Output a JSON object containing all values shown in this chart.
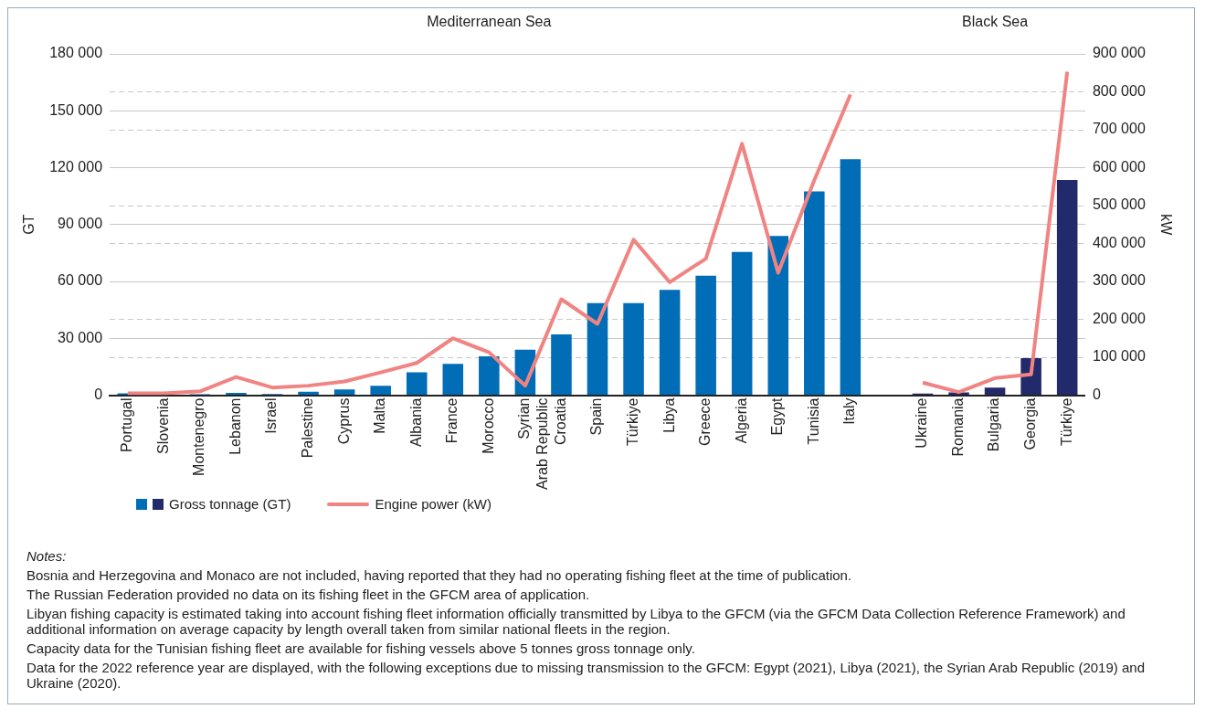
{
  "chart_data": {
    "type": "bar",
    "categories": [
      "Portugal",
      "Slovenia",
      "Montenegro",
      "Lebanon",
      "Israel",
      "Palestine",
      "Cyprus",
      "Malta",
      "Albania",
      "France",
      "Morocco",
      "Syrian Arab Republic",
      "Croatia",
      "Spain",
      "Türkiye",
      "Libya",
      "Greece",
      "Algeria",
      "Egypt",
      "Tunisia",
      "Italy",
      null,
      "Ukraine",
      "Romania",
      "Bulgaria",
      "Georgia",
      "Türkiye"
    ],
    "series": [
      {
        "name": "Gross tonnage (GT)",
        "color": "#006db6",
        "colors": [
          "#006db6",
          "#006db6",
          "#006db6",
          "#006db6",
          "#006db6",
          "#006db6",
          "#006db6",
          "#006db6",
          "#006db6",
          "#006db6",
          "#006db6",
          "#006db6",
          "#006db6",
          "#006db6",
          "#006db6",
          "#006db6",
          "#006db6",
          "#006db6",
          "#006db6",
          "#006db6",
          "#006db6",
          null,
          "#222a6b",
          "#222a6b",
          "#222a6b",
          "#222a6b",
          "#222a6b"
        ],
        "values": [
          1000,
          300,
          500,
          1200,
          600,
          1800,
          3000,
          5000,
          12000,
          16500,
          20500,
          24000,
          32000,
          48500,
          48500,
          55500,
          63000,
          75500,
          84000,
          107500,
          124500,
          null,
          800,
          1500,
          4000,
          19500,
          113500
        ]
      },
      {
        "name": "Engine power (kW)",
        "type": "line",
        "axis": "y2",
        "color": "#f08482",
        "values": [
          5000,
          5000,
          10000,
          48000,
          20000,
          25000,
          36000,
          60000,
          85000,
          150000,
          113000,
          25000,
          253000,
          188000,
          410000,
          298000,
          360000,
          663000,
          323000,
          567000,
          793000,
          null,
          33000,
          8000,
          45000,
          55000,
          853000
        ]
      }
    ],
    "ylabel": "GT",
    "y2label": "kW",
    "ylim": [
      0,
      180000
    ],
    "yticks": [
      {
        "value": 0,
        "label": "0"
      },
      {
        "value": 30000,
        "label": "30 000"
      },
      {
        "value": 60000,
        "label": "60 000"
      },
      {
        "value": 90000,
        "label": "90 000"
      },
      {
        "value": 120000,
        "label": "120 000"
      },
      {
        "value": 150000,
        "label": "150 000"
      },
      {
        "value": 180000,
        "label": "180 000"
      }
    ],
    "y2lim": [
      0,
      900000
    ],
    "y2ticks": [
      {
        "value": 0,
        "label": "0"
      },
      {
        "value": 100000,
        "label": "100 000"
      },
      {
        "value": 200000,
        "label": "200 000"
      },
      {
        "value": 300000,
        "label": "300 000"
      },
      {
        "value": 400000,
        "label": "400 000"
      },
      {
        "value": 500000,
        "label": "500 000"
      },
      {
        "value": 600000,
        "label": "600 000"
      },
      {
        "value": 700000,
        "label": "700 000"
      },
      {
        "value": 800000,
        "label": "800 000"
      },
      {
        "value": 900000,
        "label": "900 000"
      }
    ],
    "grid": "y",
    "legend": "bottom left",
    "marker": "none",
    "annotations": [
      "Mediterranean Sea",
      "Black Sea",
      "Notes:",
      "Bosnia and Herzegovina and Monaco are not included, having reported that they had no operating fishing fleet at the time of publication.",
      "The Russian Federation provided no data on its fishing fleet in the GFCM area of application.",
      "Libyan fishing capacity is estimated taking into account fishing fleet information officially transmitted by Libya to the GFCM (via the GFCM Data Collection Reference Framework) and additional information on average capacity by length overall taken from similar national fleets in the region.",
      "Capacity data for the Tunisian fishing fleet are available for fishing vessels above 5 tonnes gross tonnage only.",
      "Data for the 2022 reference year are displayed, with the following exceptions due to missing transmission to the GFCM: Egypt (2021), Libya (2021), the Syrian Arab Republic (2019) and Ukraine (2020)."
    ]
  }
}
